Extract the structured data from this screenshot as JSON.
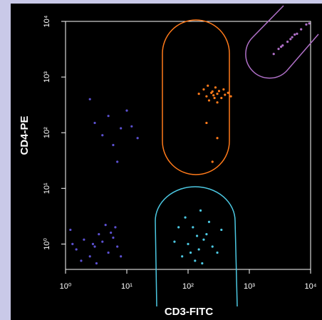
{
  "chart_data": {
    "type": "scatter",
    "log_scale": true,
    "x_label": "CD3-FITC",
    "y_label": "CD4-PE",
    "xlim": [
      1,
      10000
    ],
    "ylim": [
      0.35,
      10000
    ],
    "xticks": [
      {
        "value": 1,
        "label": "10⁰"
      },
      {
        "value": 10,
        "label": "10¹"
      },
      {
        "value": 100,
        "label": "10²"
      },
      {
        "value": 1000,
        "label": "10³"
      },
      {
        "value": 10000,
        "label": "10⁴"
      }
    ],
    "yticks": [
      {
        "value": 1,
        "label": "10⁰"
      },
      {
        "value": 10,
        "label": "10¹"
      },
      {
        "value": 100,
        "label": "10²"
      },
      {
        "value": 1000,
        "label": "10³"
      },
      {
        "value": 10000,
        "label": "10⁴"
      }
    ],
    "series": [
      {
        "color": "#5b50d0",
        "x": [
          1.5,
          2,
          3,
          4,
          2.5,
          5,
          6,
          1.2,
          3.5,
          7,
          1.8,
          4.5,
          2.8,
          5.5,
          8,
          1.3,
          3.2,
          6.5,
          3,
          5,
          8,
          4,
          10,
          6,
          12,
          2.5,
          7,
          15
        ],
        "y": [
          0.8,
          1.2,
          0.9,
          1.1,
          0.6,
          0.7,
          1.3,
          1.8,
          1.5,
          0.9,
          0.5,
          2.2,
          1.0,
          1.6,
          0.6,
          1.0,
          0.45,
          2.0,
          150,
          200,
          120,
          90,
          250,
          60,
          130,
          400,
          30,
          80
        ]
      },
      {
        "color": "#4cc8e2",
        "x": [
          100,
          150,
          200,
          120,
          80,
          250,
          180,
          90,
          300,
          130,
          160,
          60,
          220,
          110,
          140,
          350,
          170,
          70
        ],
        "y": [
          1,
          0.8,
          1.5,
          2,
          0.6,
          0.9,
          1.2,
          3,
          0.7,
          0.5,
          4,
          1.1,
          2.5,
          0.7,
          1.4,
          1.8,
          0.45,
          2
        ]
      },
      {
        "color": "#ff7a1a",
        "x": [
          200,
          250,
          300,
          180,
          350,
          280,
          400,
          220,
          320,
          260,
          450,
          150,
          380,
          240,
          300,
          500,
          210,
          270,
          200,
          300,
          250
        ],
        "y": [
          450,
          550,
          500,
          600,
          420,
          650,
          480,
          380,
          560,
          470,
          520,
          500,
          600,
          520,
          350,
          450,
          700,
          420,
          150,
          80,
          30
        ]
      },
      {
        "color": "#b070c8",
        "x": [
          2500,
          3000,
          3500,
          4200,
          5000,
          6000,
          7000,
          8500,
          3300,
          4700,
          5500,
          9500
        ],
        "y": [
          2600,
          3200,
          3700,
          4300,
          5200,
          6000,
          7200,
          8800,
          3500,
          4800,
          5800,
          9200
        ]
      }
    ]
  }
}
